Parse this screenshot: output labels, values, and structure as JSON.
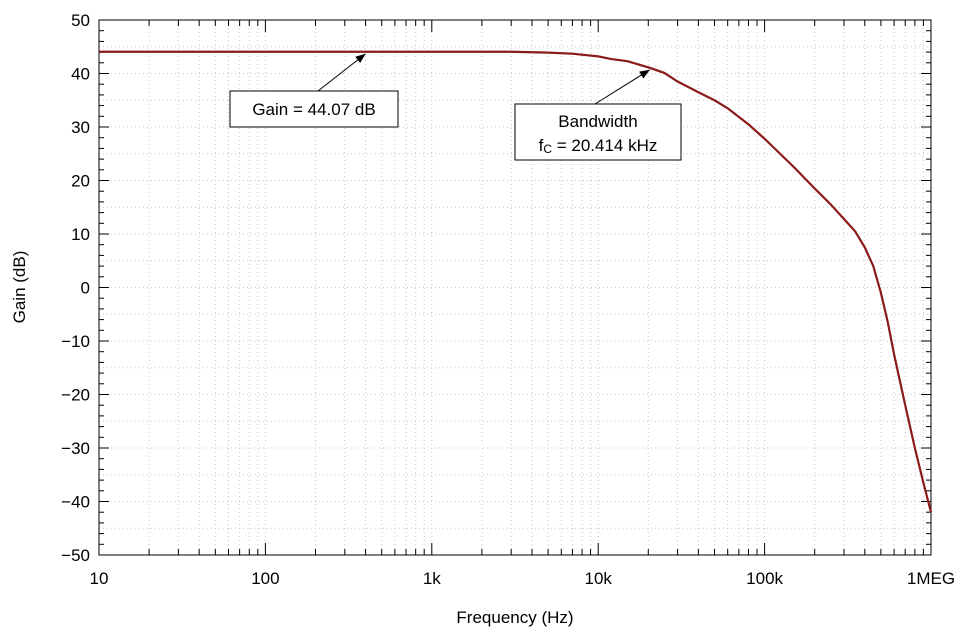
{
  "chart_data": {
    "type": "line",
    "xlabel": "Frequency (Hz)",
    "ylabel": "Gain (dB)",
    "xscale": "log",
    "xlim": [
      10,
      1000000
    ],
    "ylim": [
      -50,
      50
    ],
    "grid": true,
    "x_ticks": [
      {
        "value": 10,
        "label": "10"
      },
      {
        "value": 100,
        "label": "100"
      },
      {
        "value": 1000,
        "label": "1k"
      },
      {
        "value": 10000,
        "label": "10k"
      },
      {
        "value": 100000,
        "label": "100k"
      },
      {
        "value": 1000000,
        "label": "1MEG"
      }
    ],
    "y_ticks": [
      {
        "value": 50,
        "label": "50"
      },
      {
        "value": 40,
        "label": "40"
      },
      {
        "value": 30,
        "label": "30"
      },
      {
        "value": 20,
        "label": "20"
      },
      {
        "value": 10,
        "label": "10"
      },
      {
        "value": 0,
        "label": "0"
      },
      {
        "value": -10,
        "label": "−10"
      },
      {
        "value": -20,
        "label": "−20"
      },
      {
        "value": -30,
        "label": "−30"
      },
      {
        "value": -40,
        "label": "−40"
      },
      {
        "value": -50,
        "label": "−50"
      }
    ],
    "series": [
      {
        "color": "#8b1a1a",
        "x": [
          10,
          100,
          1000,
          3000,
          5000,
          7000,
          10000,
          12000,
          15000,
          20414,
          25000,
          30000,
          40000,
          50000,
          60000,
          80000,
          100000,
          150000,
          200000,
          250000,
          300000,
          350000,
          400000,
          450000,
          500000,
          550000,
          600000,
          700000,
          800000,
          900000,
          1000000
        ],
        "y": [
          44.07,
          44.07,
          44.07,
          44.07,
          43.9,
          43.7,
          43.2,
          42.7,
          42.3,
          41.07,
          40.1,
          38.5,
          36.5,
          35.0,
          33.5,
          30.5,
          27.8,
          22.5,
          18.5,
          15.5,
          12.8,
          10.5,
          7.5,
          4.0,
          -1.0,
          -6.5,
          -12.5,
          -22.0,
          -30.0,
          -36.5,
          -42.0
        ]
      }
    ],
    "annotations": [
      {
        "lines": [
          "Gain = 44.07 dB"
        ],
        "target": {
          "x": 400,
          "y": 44.07
        }
      },
      {
        "lines": [
          "Bandwidth",
          "fC = 20.414 kHz"
        ],
        "target": {
          "x": 20414,
          "y": 41.07
        }
      }
    ]
  }
}
